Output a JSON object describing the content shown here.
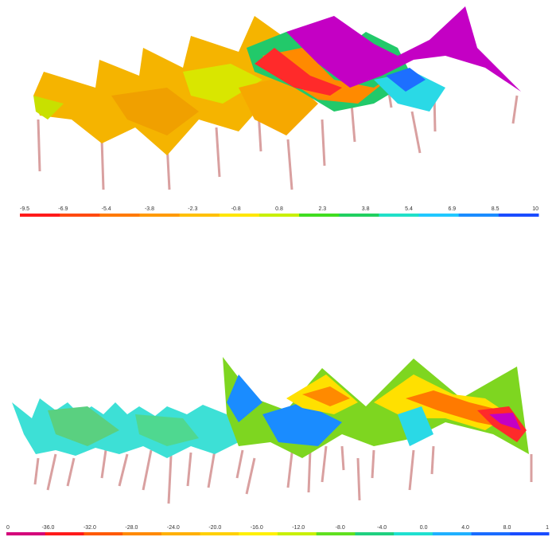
{
  "colorbars": [
    {
      "labels": [
        "-9.5",
        "-6.9",
        "-5.4",
        "-3.8",
        "-2.3",
        "-0.8",
        "0.8",
        "2.3",
        "3.8",
        "5.4",
        "6.9",
        "8.5",
        "10"
      ]
    },
    {
      "labels": [
        "0",
        "-36.0",
        "-32.0",
        "-28.0",
        "-24.0",
        "-20.0",
        "-16.0",
        "-12.0",
        "-8.0",
        "-4.0",
        "0.0",
        "4.0",
        "8.0",
        "1"
      ]
    }
  ]
}
